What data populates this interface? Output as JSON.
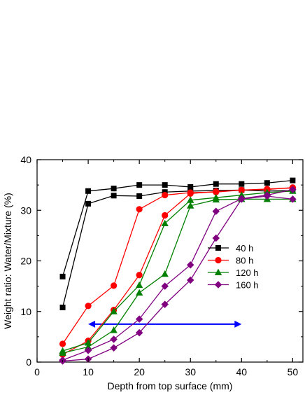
{
  "chart_data": {
    "type": "line",
    "title": "",
    "xlabel": "Depth from top surface (mm)",
    "ylabel": "Weight ratio: Water/Mixture (%)",
    "xlim": [
      0,
      52
    ],
    "ylim": [
      0,
      40
    ],
    "xticks": [
      0,
      10,
      20,
      30,
      40,
      50
    ],
    "yticks": [
      0,
      10,
      20,
      30,
      40
    ],
    "grid": false,
    "legend_position": "right",
    "series": [
      {
        "name": "40 h",
        "color": "#000000",
        "marker": "square",
        "lines": [
          {
            "x": [
              5,
              10,
              15,
              20,
              25,
              30,
              35,
              40,
              45,
              50
            ],
            "y": [
              16.9,
              33.8,
              34.3,
              35.0,
              35.0,
              34.6,
              35.2,
              35.2,
              35.4,
              35.9
            ]
          },
          {
            "x": [
              5,
              10,
              15,
              20,
              25,
              30,
              35,
              40,
              45,
              50
            ],
            "y": [
              10.8,
              31.3,
              32.9,
              32.8,
              33.6,
              33.8,
              33.9,
              34.0,
              33.8,
              33.9
            ]
          }
        ]
      },
      {
        "name": "80 h",
        "color": "#ff0000",
        "marker": "circle",
        "lines": [
          {
            "x": [
              5,
              10,
              15,
              20,
              25,
              30,
              35,
              40,
              45,
              50
            ],
            "y": [
              3.6,
              11.1,
              15.1,
              30.2,
              33.0,
              33.5,
              33.6,
              34.0,
              34.2,
              34.4
            ]
          },
          {
            "x": [
              5,
              10,
              15,
              20,
              25,
              30,
              35,
              40,
              45,
              50
            ],
            "y": [
              1.5,
              4.2,
              10.3,
              17.2,
              29.0,
              33.3,
              33.7,
              34.0,
              34.1,
              34.5
            ]
          }
        ]
      },
      {
        "name": "120 h",
        "color": "#008000",
        "marker": "triangle",
        "lines": [
          {
            "x": [
              5,
              10,
              15,
              20,
              25,
              30,
              35,
              40,
              45,
              50
            ],
            "y": [
              2.2,
              3.8,
              10.0,
              15.2,
              27.4,
              32.0,
              32.5,
              33.0,
              33.5,
              33.8
            ]
          },
          {
            "x": [
              5,
              10,
              15,
              20,
              25,
              30,
              35,
              40,
              45,
              50
            ],
            "y": [
              1.8,
              3.0,
              6.3,
              13.7,
              17.4,
              30.9,
              32.1,
              32.2,
              32.2,
              32.2
            ]
          }
        ]
      },
      {
        "name": "160 h",
        "color": "#800080",
        "marker": "diamond",
        "lines": [
          {
            "x": [
              5,
              10,
              15,
              20,
              25,
              30,
              35,
              40,
              45,
              50
            ],
            "y": [
              0.4,
              2.3,
              4.5,
              8.5,
              15.0,
              19.2,
              29.8,
              32.3,
              33.0,
              34.1
            ]
          },
          {
            "x": [
              5,
              10,
              15,
              20,
              25,
              30,
              35,
              40,
              45,
              50
            ],
            "y": [
              0.2,
              0.6,
              2.8,
              5.8,
              11.4,
              16.2,
              24.5,
              32.2,
              32.8,
              32.2
            ]
          }
        ]
      }
    ],
    "annotations": [
      {
        "type": "double-arrow",
        "color": "#0000ff",
        "x": [
          10,
          40
        ],
        "y": 7.5
      }
    ]
  }
}
